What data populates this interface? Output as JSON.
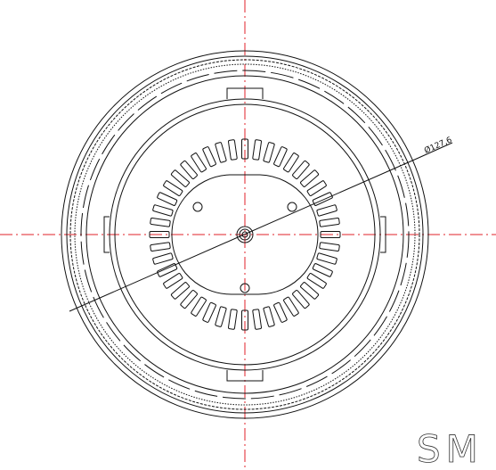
{
  "dimension": {
    "label": "Ø127,6"
  },
  "watermark": "SM"
}
